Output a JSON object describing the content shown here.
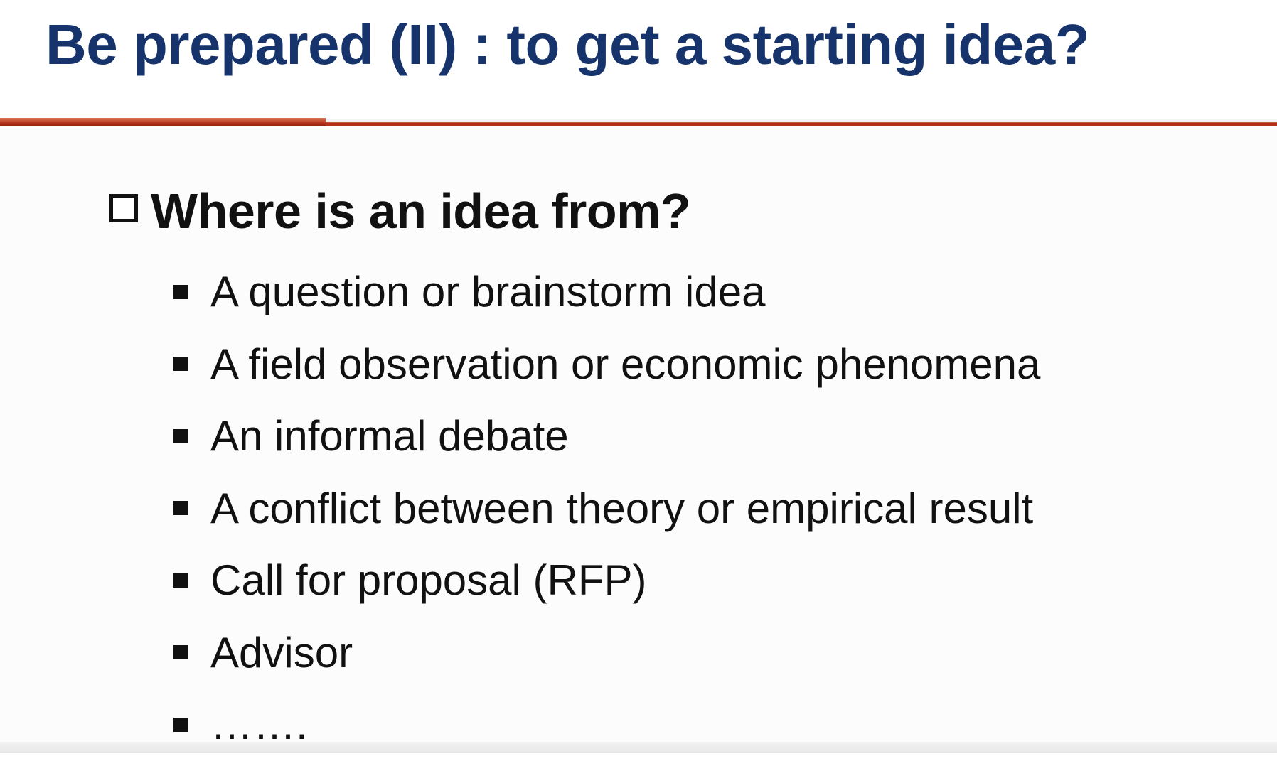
{
  "slide": {
    "title": "Be prepared (II) : to get a starting idea?",
    "heading": "Where is an idea from?",
    "bullets": [
      "A question or brainstorm idea",
      "A field observation or economic phenomena",
      "An informal debate",
      "A conflict between theory or empirical result",
      "Call for proposal (RFP)",
      "Advisor",
      "……."
    ]
  },
  "colors": {
    "title": "#16336b",
    "accent_rule": "#b3311a",
    "text": "#111111"
  },
  "icons": {
    "heading_bullet": "checkbox-icon",
    "list_bullet": "square-bullet-icon"
  }
}
